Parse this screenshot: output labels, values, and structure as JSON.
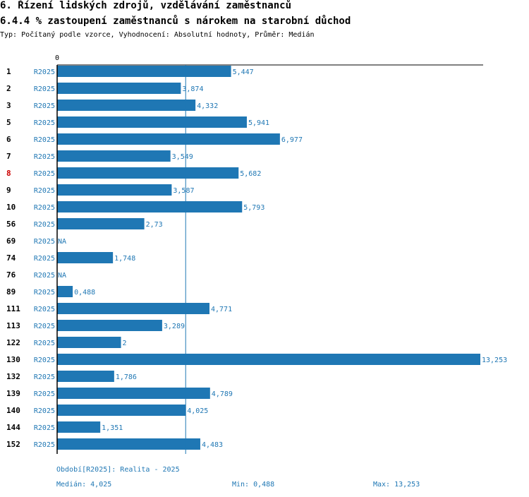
{
  "header": {
    "title": "6. Řízení lidských zdrojů, vzdělávání zaměstnanců",
    "subtitle": "6.4.4 % zastoupení zaměstnanců s nárokem na starobní důchod",
    "info": "Typ: Počítaný podle vzorce, Vyhodnocení: Absolutní hodnoty, Průměr: Medián"
  },
  "chart_data": {
    "type": "bar",
    "orientation": "horizontal",
    "axis_zero_label": "0",
    "xlim": [
      0,
      13.253
    ],
    "bar_color": "#1f77b4",
    "highlight_color": "#cc0000",
    "median_value": 4.025,
    "categories": [
      "1",
      "2",
      "3",
      "5",
      "6",
      "7",
      "8",
      "9",
      "10",
      "56",
      "69",
      "74",
      "76",
      "89",
      "111",
      "113",
      "122",
      "130",
      "132",
      "139",
      "140",
      "144",
      "152"
    ],
    "series_labels": [
      "R2025",
      "R2025",
      "R2025",
      "R2025",
      "R2025",
      "R2025",
      "R2025",
      "R2025",
      "R2025",
      "R2025",
      "R2025",
      "R2025",
      "R2025",
      "R2025",
      "R2025",
      "R2025",
      "R2025",
      "R2025",
      "R2025",
      "R2025",
      "R2025",
      "R2025",
      "R2025"
    ],
    "values": [
      5.447,
      3.874,
      4.332,
      5.941,
      6.977,
      3.549,
      5.682,
      3.587,
      5.793,
      2.73,
      null,
      1.748,
      null,
      0.488,
      4.771,
      3.289,
      2,
      13.253,
      1.786,
      4.789,
      4.025,
      1.351,
      4.483
    ],
    "value_labels": [
      "5,447",
      "3,874",
      "4,332",
      "5,941",
      "6,977",
      "3,549",
      "5,682",
      "3,587",
      "5,793",
      "2,73",
      "NA",
      "1,748",
      "NA",
      "0,488",
      "4,771",
      "3,289",
      "2",
      "13,253",
      "1,786",
      "4,789",
      "4,025",
      "1,351",
      "4,483"
    ],
    "highlighted": [
      "8"
    ]
  },
  "footer": {
    "period": "Období[R2025]: Realita - 2025",
    "median": "Medián: 4,025",
    "min": "Min: 0,488",
    "max": "Max: 13,253"
  }
}
